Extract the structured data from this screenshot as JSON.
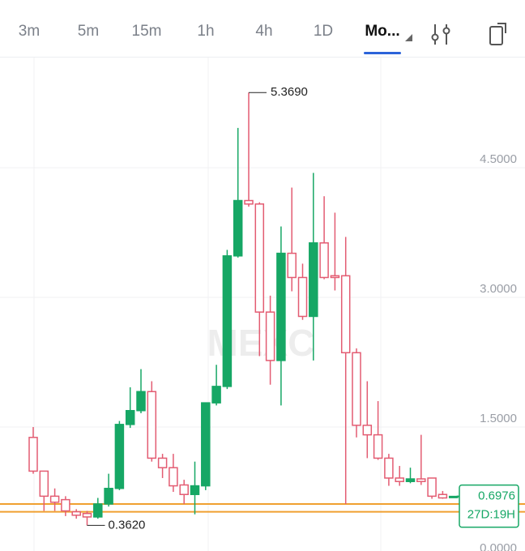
{
  "tabs": [
    "3m",
    "5m",
    "15m",
    "1h",
    "4h",
    "1D",
    "Mo..."
  ],
  "active_tab": 6,
  "chart_data": {
    "type": "candlestick",
    "watermark": "MEXC",
    "open": [
      1.38,
      0.99,
      0.7,
      0.66,
      0.52,
      0.5,
      0.46,
      0.61,
      0.79,
      1.53,
      1.69,
      1.91,
      1.14,
      1.03,
      0.83,
      0.72,
      0.82,
      1.78,
      1.97,
      3.48,
      4.12,
      4.08,
      2.83,
      2.27,
      3.51,
      3.23,
      2.78,
      3.63,
      3.25,
      3.25,
      2.36,
      1.52,
      1.41,
      1.14,
      0.91,
      0.87,
      0.9,
      0.91,
      0.72,
      0.69
    ],
    "high": [
      1.5,
      0.99,
      0.79,
      0.7,
      0.55,
      0.53,
      0.68,
      0.96,
      1.57,
      1.96,
      2.17,
      2.03,
      1.19,
      1.19,
      0.89,
      1.1,
      1.78,
      2.22,
      3.55,
      4.96,
      5.369,
      4.1,
      3.02,
      3.82,
      4.27,
      3.39,
      4.44,
      4.17,
      3.98,
      3.7,
      2.41,
      2.03,
      1.8,
      1.19,
      1.05,
      1.03,
      1.41,
      0.91,
      0.76,
      0.7
    ],
    "low": [
      0.96,
      0.53,
      0.53,
      0.47,
      0.44,
      0.362,
      0.44,
      0.58,
      0.77,
      1.49,
      1.66,
      1.1,
      0.91,
      0.75,
      0.61,
      0.49,
      0.77,
      1.75,
      1.94,
      3.46,
      4.05,
      2.32,
      1.99,
      1.75,
      3.07,
      2.74,
      2.27,
      3.21,
      3.08,
      0.61,
      1.38,
      1.14,
      1.12,
      0.82,
      0.82,
      0.85,
      0.83,
      0.67,
      0.67,
      0.69
    ],
    "close": [
      0.99,
      0.7,
      0.63,
      0.53,
      0.48,
      0.46,
      0.61,
      0.79,
      1.53,
      1.69,
      1.91,
      1.14,
      1.03,
      0.82,
      0.72,
      0.82,
      1.78,
      1.97,
      3.48,
      4.12,
      4.08,
      2.83,
      2.27,
      3.51,
      3.23,
      2.78,
      3.63,
      3.23,
      3.23,
      2.36,
      1.52,
      1.41,
      1.14,
      0.91,
      0.87,
      0.9,
      0.87,
      0.7,
      0.68,
      0.6976
    ],
    "up_color": "#16a765",
    "down_color": "#e35c72",
    "ylim": [
      0.066,
      5.784
    ],
    "yticks": [
      {
        "value": 0,
        "label": "0.0000"
      },
      {
        "value": 1.5,
        "label": "1.5000"
      },
      {
        "value": 3,
        "label": "3.0000"
      },
      {
        "value": 4.5,
        "label": "4.5000"
      }
    ],
    "grid": true,
    "high_marker": {
      "value": 5.369,
      "label": "5.3690"
    },
    "low_marker": {
      "value": 0.362,
      "label": "0.3620"
    },
    "last_price": 0.6976,
    "countdown": "27D:19H",
    "price_lines": [
      0.61,
      0.52
    ],
    "price_line_color": "#f0a030"
  }
}
